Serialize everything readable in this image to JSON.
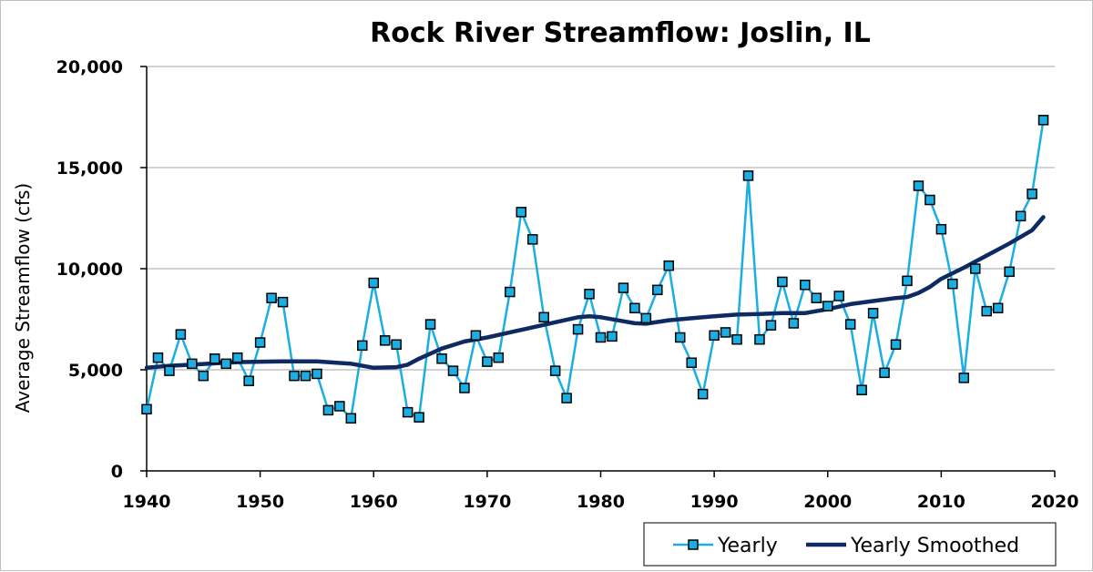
{
  "chart_data": {
    "type": "line",
    "title": "Rock River Streamflow: Joslin, IL",
    "xlabel": "",
    "ylabel": "Average Streamflow (cfs)",
    "xlim": [
      1940,
      2020
    ],
    "ylim": [
      0,
      20000
    ],
    "x_ticks": [
      1940,
      1950,
      1960,
      1970,
      1980,
      1990,
      2000,
      2010,
      2020
    ],
    "x_tick_labels": [
      "1940",
      "1950",
      "1960",
      "1970",
      "1980",
      "1990",
      "2000",
      "2010",
      "2020"
    ],
    "y_ticks": [
      0,
      5000,
      10000,
      15000,
      20000
    ],
    "y_tick_labels": [
      "0",
      "5,000",
      "10,000",
      "15,000",
      "20,000"
    ],
    "grid": "horizontal",
    "legend_position": "bottom-right",
    "colors": {
      "yearly": "#1aaee3",
      "smoothed": "#0e2a63",
      "grid": "#a6a6a6"
    },
    "series": [
      {
        "name": "Yearly",
        "style": "line-with-square-markers",
        "x": [
          1940,
          1941,
          1942,
          1943,
          1944,
          1945,
          1946,
          1947,
          1948,
          1949,
          1950,
          1951,
          1952,
          1953,
          1954,
          1955,
          1956,
          1957,
          1958,
          1959,
          1960,
          1961,
          1962,
          1963,
          1964,
          1965,
          1966,
          1967,
          1968,
          1969,
          1970,
          1971,
          1972,
          1973,
          1974,
          1975,
          1976,
          1977,
          1978,
          1979,
          1980,
          1981,
          1982,
          1983,
          1984,
          1985,
          1986,
          1987,
          1988,
          1989,
          1990,
          1991,
          1992,
          1993,
          1994,
          1995,
          1996,
          1997,
          1998,
          1999,
          2000,
          2001,
          2002,
          2003,
          2004,
          2005,
          2006,
          2007,
          2008,
          2009,
          2010,
          2011,
          2012,
          2013,
          2014,
          2015,
          2016,
          2017,
          2018,
          2019
        ],
        "values": [
          3050,
          5600,
          4950,
          6750,
          5300,
          4700,
          5550,
          5300,
          5600,
          4450,
          6350,
          8550,
          8350,
          4700,
          4700,
          4800,
          3000,
          3200,
          2600,
          6200,
          9300,
          6450,
          6250,
          2900,
          2650,
          7250,
          5550,
          4950,
          4100,
          6700,
          5400,
          5600,
          8850,
          12800,
          11450,
          7600,
          4950,
          3600,
          7000,
          8750,
          6600,
          6650,
          9050,
          8050,
          7550,
          8950,
          10150,
          6600,
          5350,
          3800,
          6700,
          6850,
          6500,
          14600,
          6500,
          7200,
          9350,
          7300,
          9200,
          8550,
          8150,
          8650,
          7250,
          4000,
          7800,
          4850,
          6250,
          9400,
          14100,
          13400,
          11950,
          9250,
          4600,
          10000,
          7900,
          8050,
          9850,
          12600,
          13700,
          17350
        ]
      },
      {
        "name": "Yearly Smoothed",
        "style": "thick-line",
        "x": [
          1940,
          1942,
          1944,
          1946,
          1948,
          1950,
          1952,
          1954,
          1955,
          1956,
          1958,
          1960,
          1962,
          1963,
          1964,
          1966,
          1968,
          1970,
          1972,
          1974,
          1976,
          1978,
          1979,
          1980,
          1982,
          1983,
          1984,
          1986,
          1988,
          1990,
          1992,
          1994,
          1996,
          1998,
          2000,
          2002,
          2004,
          2006,
          2007,
          2008,
          2009,
          2010,
          2012,
          2014,
          2016,
          2018,
          2019
        ],
        "values": [
          5100,
          5200,
          5250,
          5320,
          5380,
          5400,
          5420,
          5420,
          5420,
          5380,
          5300,
          5100,
          5130,
          5250,
          5550,
          6050,
          6400,
          6600,
          6850,
          7100,
          7350,
          7600,
          7650,
          7600,
          7400,
          7300,
          7280,
          7450,
          7550,
          7650,
          7730,
          7760,
          7800,
          7800,
          8000,
          8250,
          8400,
          8550,
          8600,
          8800,
          9100,
          9500,
          10050,
          10650,
          11250,
          11900,
          12550
        ]
      }
    ]
  }
}
